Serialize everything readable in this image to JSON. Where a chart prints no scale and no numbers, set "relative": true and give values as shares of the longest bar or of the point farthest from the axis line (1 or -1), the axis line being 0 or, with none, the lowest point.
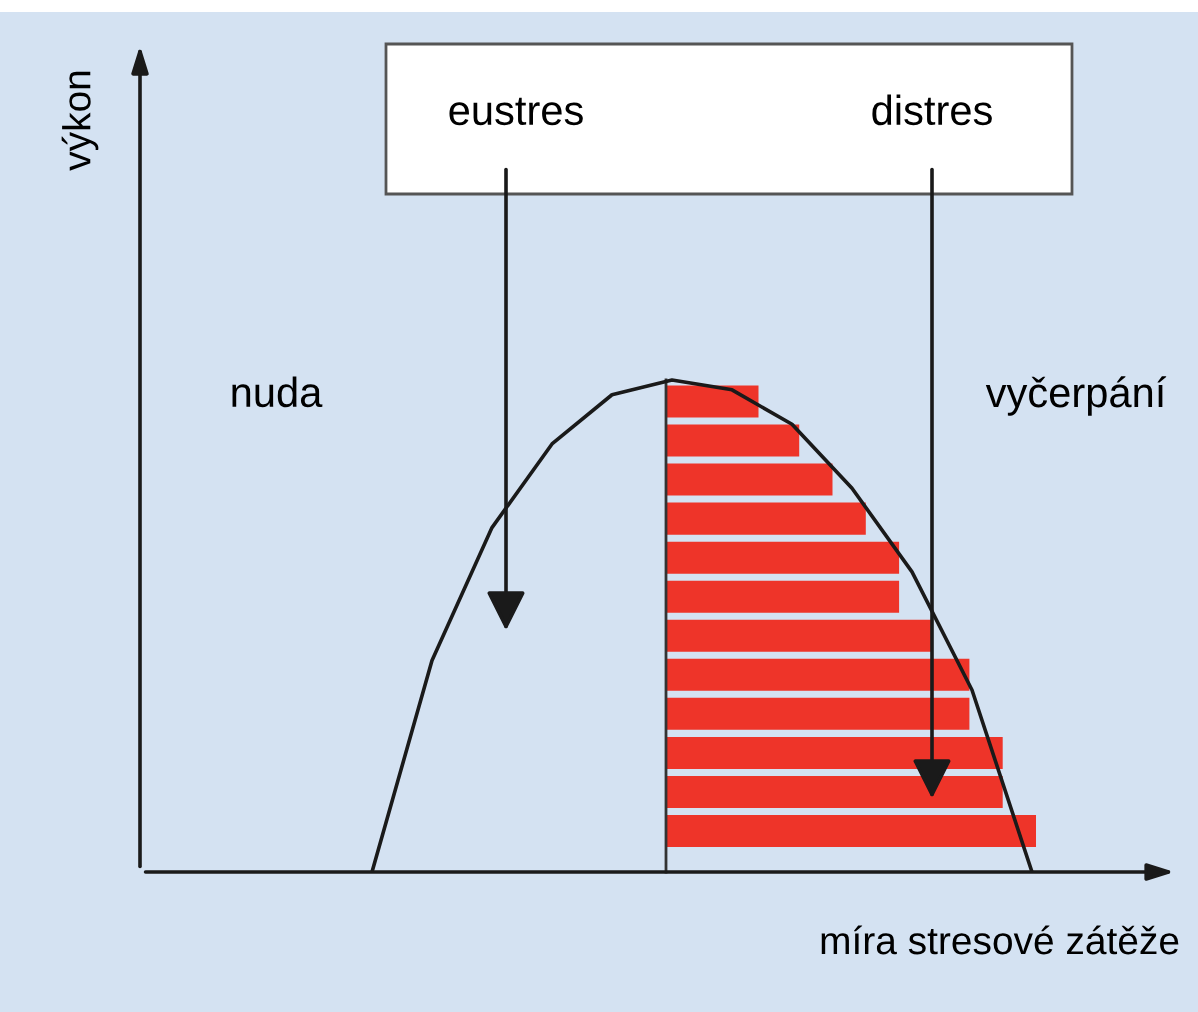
{
  "chart_data": [
    {
      "type": "line",
      "relative": true,
      "xlabel": "míra stresové zátěže",
      "ylabel": "výkon",
      "categories": [
        null,
        null,
        null,
        null,
        null,
        null,
        null,
        null,
        null,
        null,
        null,
        null
      ],
      "series": [
        {
          "color": "#1a1a1a",
          "values": [
            0,
            0.43,
            0.7,
            0.87,
            0.97,
            1.0,
            0.98,
            0.91,
            0.78,
            0.61,
            0.37,
            0
          ]
        }
      ],
      "annotations": [
        "eustres",
        "distres",
        "nuda",
        "vyčerpání"
      ],
      "legend": false
    },
    {
      "type": "bar",
      "orientation": "horizontal",
      "relative": true,
      "categories": [
        null,
        null,
        null,
        null,
        null,
        null,
        null,
        null,
        null,
        null,
        null,
        null
      ],
      "values": [
        0.25,
        0.36,
        0.45,
        0.54,
        0.63,
        0.63,
        0.72,
        0.82,
        0.82,
        0.91,
        0.91,
        1.0
      ],
      "color": "#ee3429",
      "legend": false
    }
  ]
}
